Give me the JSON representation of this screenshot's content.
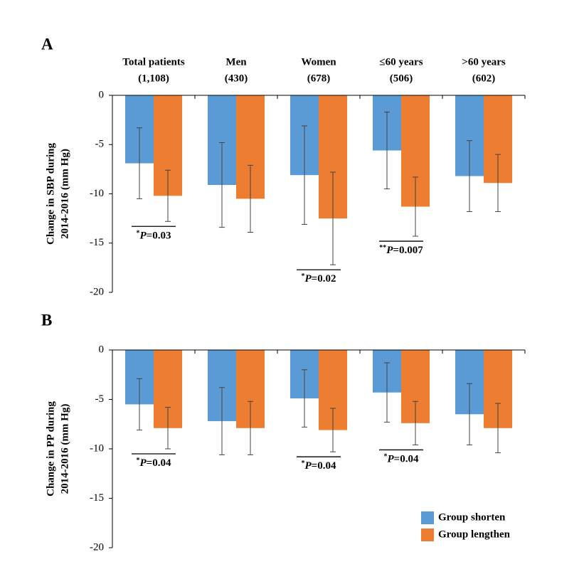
{
  "chart_data": [
    {
      "type": "bar",
      "panel": "A",
      "categories": [
        [
          "Total patients",
          "(1,108)"
        ],
        [
          "Men",
          "(430)"
        ],
        [
          "Women",
          "(678)"
        ],
        [
          "≤60 years",
          "(506)"
        ],
        [
          ">60 years",
          "(602)"
        ]
      ],
      "ylabel": [
        "Change in SBP during",
        "2014-2016 (mm Hg)"
      ],
      "ylim": [
        -20,
        0
      ],
      "yticks": [
        0,
        -5,
        -10,
        -15,
        -20
      ],
      "series": [
        {
          "name": "Group shorten",
          "color": "#5b9bd5",
          "values": [
            -6.9,
            -9.1,
            -8.1,
            -5.6,
            -8.2
          ],
          "errors": [
            3.6,
            4.3,
            5.0,
            3.9,
            3.6
          ]
        },
        {
          "name": "Group lengthen",
          "color": "#ed7d31",
          "values": [
            -10.2,
            -10.5,
            -12.5,
            -11.3,
            -8.9
          ],
          "errors": [
            2.6,
            3.4,
            4.7,
            3.0,
            2.9
          ]
        }
      ],
      "annotations": [
        {
          "prefix": "*",
          "italic": "P",
          "text": "=0.03"
        },
        null,
        {
          "prefix": "*",
          "italic": "P",
          "text": "=0.02"
        },
        {
          "prefix": "**",
          "italic": "P",
          "text": "=0.007"
        },
        null
      ]
    },
    {
      "type": "bar",
      "panel": "B",
      "categories": [
        null,
        null,
        null,
        null,
        null
      ],
      "ylabel": [
        "Change in PP during",
        "2014-2016 (mm Hg)"
      ],
      "ylim": [
        -20,
        0
      ],
      "yticks": [
        0,
        -5,
        -10,
        -15,
        -20
      ],
      "series": [
        {
          "name": "Group shorten",
          "color": "#5b9bd5",
          "values": [
            -5.5,
            -7.2,
            -4.9,
            -4.3,
            -6.5
          ],
          "errors": [
            2.6,
            3.4,
            2.9,
            3.0,
            3.1
          ]
        },
        {
          "name": "Group lengthen",
          "color": "#ed7d31",
          "values": [
            -7.9,
            -7.9,
            -8.1,
            -7.4,
            -7.9
          ],
          "errors": [
            2.1,
            2.7,
            2.2,
            2.2,
            2.5
          ]
        }
      ],
      "annotations": [
        {
          "prefix": "*",
          "italic": "P",
          "text": "=0.04"
        },
        null,
        {
          "prefix": "*",
          "italic": "P",
          "text": "=0.04"
        },
        {
          "prefix": "*",
          "italic": "P",
          "text": "=0.04"
        },
        null
      ],
      "legend": "lower right"
    }
  ]
}
